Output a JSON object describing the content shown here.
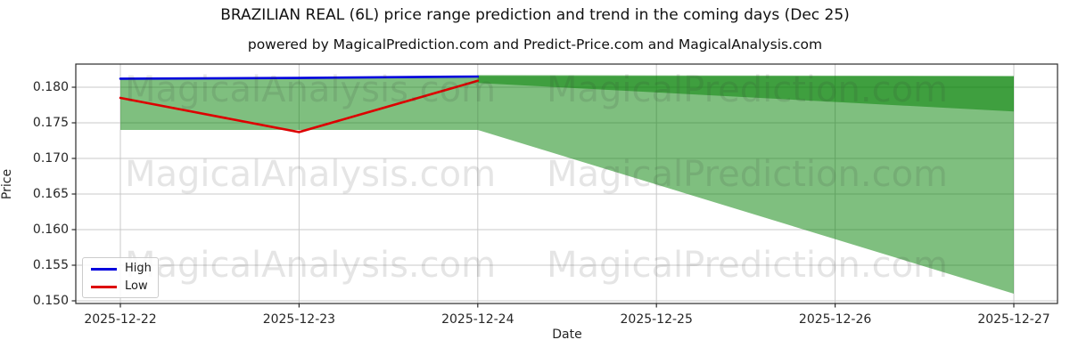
{
  "header": {
    "title": "BRAZILIAN REAL (6L) price range prediction and trend in the coming days (Dec 25)",
    "subtitle": "powered by MagicalPrediction.com and Predict-Price.com and MagicalAnalysis.com"
  },
  "watermarks": {
    "left_text": "MagicalAnalysis.com",
    "right_text": "MagicalPrediction.com"
  },
  "chart_data": {
    "type": "line",
    "title": "BRAZILIAN REAL (6L) price range prediction and trend in the coming days (Dec 25)",
    "subtitle": "powered by MagicalPrediction.com and Predict-Price.com and MagicalAnalysis.com",
    "xlabel": "Date",
    "ylabel": "Price",
    "x_tick_labels": [
      "2025-12-22",
      "2025-12-23",
      "2025-12-24",
      "2025-12-25",
      "2025-12-26",
      "2025-12-27"
    ],
    "y_tick_labels": [
      "0.150",
      "0.155",
      "0.160",
      "0.165",
      "0.170",
      "0.175",
      "0.180"
    ],
    "y_tick_values": [
      0.15,
      0.155,
      0.16,
      0.165,
      0.17,
      0.175,
      0.18
    ],
    "ylim": [
      0.149625,
      0.18325
    ],
    "grid": true,
    "legend_position": "lower left",
    "series": [
      {
        "name": "High",
        "color": "#0000dd",
        "x_days": [
          0,
          1,
          2
        ],
        "x_dates": [
          "2025-12-22",
          "2025-12-23",
          "2025-12-24"
        ],
        "values": [
          0.1812,
          0.1813,
          0.1815
        ]
      },
      {
        "name": "Low",
        "color": "#dd0000",
        "x_days": [
          0,
          1,
          2
        ],
        "x_dates": [
          "2025-12-22",
          "2025-12-23",
          "2025-12-24"
        ],
        "values": [
          0.1785,
          0.1737,
          0.1809
        ]
      }
    ],
    "bands": [
      {
        "name": "historical-range",
        "x_days": [
          0,
          1,
          2
        ],
        "upper": [
          0.1812,
          0.1813,
          0.1815
        ],
        "lower": [
          0.174,
          0.174,
          0.174
        ]
      },
      {
        "name": "forecast-fan",
        "x_days": [
          2,
          5
        ],
        "upper": [
          0.1816,
          0.1815
        ],
        "lower": [
          0.174,
          0.151
        ]
      },
      {
        "name": "forecast-upper-strip",
        "x_days": [
          2,
          5
        ],
        "upper": [
          0.1817,
          0.1816
        ],
        "lower": [
          0.1806,
          0.1766
        ]
      }
    ],
    "band_color": "rgba(0,128,0,0.5)"
  }
}
